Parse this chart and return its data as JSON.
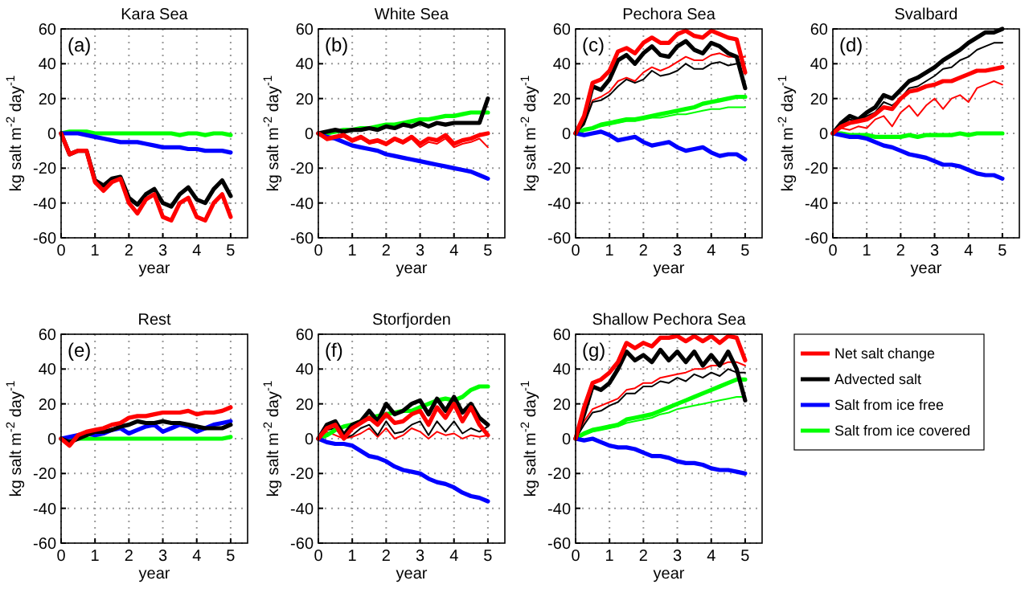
{
  "chart_data": [
    {
      "type": "line",
      "title": "Kara Sea",
      "annotations": [
        "(a)"
      ],
      "xlabel": "year",
      "ylabel": "kg salt m$^{-2}$ day$^{-1}$",
      "x": [
        0,
        0.25,
        0.5,
        0.75,
        1,
        1.25,
        1.5,
        1.75,
        2,
        2.25,
        2.5,
        2.75,
        3,
        3.25,
        3.5,
        3.75,
        4,
        4.25,
        4.5,
        4.75,
        5
      ],
      "xlim": [
        0,
        5.5
      ],
      "xticks": [
        0,
        1,
        2,
        3,
        4,
        5
      ],
      "ylim": [
        -60,
        60
      ],
      "yticks": [
        -60,
        -40,
        -20,
        0,
        20,
        40,
        60
      ],
      "grid": true,
      "series": [
        {
          "color": "#ff0000",
          "values": [
            0,
            -12,
            -10,
            -10,
            -28,
            -33,
            -28,
            -26,
            -40,
            -46,
            -38,
            -35,
            -48,
            -50,
            -40,
            -37,
            -48,
            -50,
            -40,
            -35,
            -48
          ]
        },
        {
          "color": "#000000",
          "values": [
            0,
            -12,
            -10,
            -10,
            -27,
            -30,
            -26,
            -25,
            -37,
            -41,
            -35,
            -32,
            -40,
            -42,
            -35,
            -31,
            -38,
            -40,
            -32,
            -27,
            -36
          ]
        },
        {
          "color": "#0000ff",
          "values": [
            0,
            0,
            0,
            -1,
            -2,
            -3,
            -4,
            -5,
            -5,
            -5,
            -6,
            -7,
            -8,
            -8,
            -8,
            -9,
            -9,
            -10,
            -10,
            -10,
            -11
          ]
        },
        {
          "color": "#00ff00",
          "values": [
            0,
            1,
            1,
            1,
            0,
            0,
            0,
            0,
            0,
            0,
            0,
            0,
            0,
            0,
            -1,
            0,
            0,
            -1,
            0,
            0,
            -1
          ]
        }
      ]
    },
    {
      "type": "line",
      "title": "White Sea",
      "annotations": [
        "(b)"
      ],
      "xlabel": "year",
      "ylabel": "kg salt m$^{-2}$ day$^{-1}$",
      "x": [
        0,
        0.25,
        0.5,
        0.75,
        1,
        1.25,
        1.5,
        1.75,
        2,
        2.25,
        2.5,
        2.75,
        3,
        3.25,
        3.5,
        3.75,
        4,
        4.25,
        4.5,
        4.75,
        5
      ],
      "xlim": [
        0,
        5.5
      ],
      "xticks": [
        0,
        1,
        2,
        3,
        4,
        5
      ],
      "ylim": [
        -60,
        60
      ],
      "yticks": [
        -60,
        -40,
        -20,
        0,
        20,
        40,
        60
      ],
      "grid": true,
      "series": [
        {
          "color": "#ff0000",
          "values": [
            0,
            -3,
            -2,
            -1,
            -4,
            -2,
            -5,
            -4,
            -6,
            -3,
            -5,
            -2,
            -6,
            -3,
            -4,
            -1,
            -6,
            -4,
            -3,
            -1,
            0
          ]
        },
        {
          "color": "#000000",
          "values": [
            0,
            1,
            2,
            1,
            2,
            2,
            3,
            2,
            4,
            3,
            5,
            4,
            6,
            4,
            6,
            5,
            6,
            6,
            6,
            6,
            20
          ]
        },
        {
          "color": "#0000ff",
          "values": [
            0,
            -2,
            -3,
            -5,
            -7,
            -8,
            -9,
            -10,
            -12,
            -13,
            -14,
            -15,
            -16,
            -17,
            -18,
            -19,
            -20,
            -21,
            -22,
            -24,
            -26
          ]
        },
        {
          "color": "#00ff00",
          "values": [
            0,
            0,
            1,
            2,
            2,
            3,
            3,
            4,
            5,
            5,
            6,
            7,
            8,
            8,
            9,
            10,
            10,
            11,
            12,
            12,
            12
          ]
        },
        {
          "color": "#ff0000",
          "values": [
            0,
            -4,
            -3,
            -2,
            -5,
            -3,
            -6,
            -5,
            -7,
            -4,
            -6,
            -3,
            -8,
            -5,
            -6,
            -3,
            -8,
            -6,
            -5,
            -3,
            -8
          ]
        }
      ]
    },
    {
      "type": "line",
      "title": "Pechora Sea",
      "annotations": [
        "(c)"
      ],
      "xlabel": "year",
      "ylabel": "kg salt m$^{-2}$ day$^{-1}$",
      "x": [
        0,
        0.25,
        0.5,
        0.75,
        1,
        1.25,
        1.5,
        1.75,
        2,
        2.25,
        2.5,
        2.75,
        3,
        3.25,
        3.5,
        3.75,
        4,
        4.25,
        4.5,
        4.75,
        5
      ],
      "xlim": [
        0,
        5.5
      ],
      "xticks": [
        0,
        1,
        2,
        3,
        4,
        5
      ],
      "ylim": [
        -60,
        60
      ],
      "yticks": [
        -60,
        -40,
        -20,
        0,
        20,
        40,
        60
      ],
      "grid": true,
      "series": [
        {
          "color": "#ff0000",
          "values": [
            0,
            10,
            29,
            31,
            36,
            47,
            49,
            46,
            52,
            55,
            52,
            52,
            57,
            59,
            56,
            55,
            59,
            57,
            55,
            54,
            35
          ]
        },
        {
          "color": "#000000",
          "values": [
            0,
            8,
            27,
            25,
            31,
            42,
            45,
            40,
            46,
            50,
            45,
            44,
            50,
            53,
            48,
            46,
            52,
            50,
            46,
            44,
            26
          ]
        },
        {
          "color": "#0000ff",
          "values": [
            0,
            -1,
            0,
            1,
            -1,
            -4,
            -3,
            -2,
            -5,
            -7,
            -6,
            -5,
            -8,
            -10,
            -9,
            -8,
            -11,
            -13,
            -12,
            -12,
            -15
          ]
        },
        {
          "color": "#00ff00",
          "values": [
            0,
            2,
            3,
            5,
            6,
            7,
            8,
            8,
            9,
            10,
            11,
            12,
            13,
            14,
            15,
            17,
            18,
            19,
            20,
            21,
            21
          ]
        },
        {
          "color": "#ff0000",
          "values": [
            0,
            6,
            19,
            21,
            24,
            30,
            32,
            30,
            35,
            38,
            36,
            38,
            41,
            44,
            42,
            42,
            45,
            46,
            44,
            44,
            44
          ]
        },
        {
          "color": "#000000",
          "values": [
            0,
            5,
            18,
            19,
            22,
            27,
            31,
            29,
            31,
            36,
            33,
            34,
            36,
            40,
            37,
            37,
            40,
            41,
            39,
            40,
            40
          ]
        },
        {
          "color": "#00ff00",
          "values": [
            0,
            2,
            3,
            4,
            5,
            6,
            7,
            7,
            8,
            9,
            9,
            10,
            11,
            11,
            12,
            13,
            14,
            14,
            15,
            15,
            15
          ]
        }
      ]
    },
    {
      "type": "line",
      "title": "Svalbard",
      "annotations": [
        "(d)"
      ],
      "xlabel": "year",
      "ylabel": "kg salt m$^{-2}$ day$^{-1}$",
      "x": [
        0,
        0.25,
        0.5,
        0.75,
        1,
        1.25,
        1.5,
        1.75,
        2,
        2.25,
        2.5,
        2.75,
        3,
        3.25,
        3.5,
        3.75,
        4,
        4.25,
        4.5,
        4.75,
        5
      ],
      "xlim": [
        0,
        5.5
      ],
      "xticks": [
        0,
        1,
        2,
        3,
        4,
        5
      ],
      "ylim": [
        -60,
        60
      ],
      "yticks": [
        -60,
        -40,
        -20,
        0,
        20,
        40,
        60
      ],
      "grid": true,
      "series": [
        {
          "color": "#ff0000",
          "values": [
            0,
            4,
            6,
            7,
            8,
            11,
            15,
            14,
            20,
            24,
            25,
            27,
            28,
            30,
            30,
            32,
            34,
            36,
            36,
            37,
            38
          ]
        },
        {
          "color": "#000000",
          "values": [
            0,
            6,
            10,
            8,
            12,
            15,
            22,
            20,
            25,
            30,
            32,
            35,
            38,
            42,
            45,
            48,
            52,
            55,
            58,
            58,
            60
          ]
        },
        {
          "color": "#0000ff",
          "values": [
            0,
            -1,
            -2,
            -2,
            -3,
            -5,
            -7,
            -8,
            -10,
            -12,
            -13,
            -14,
            -16,
            -18,
            -18,
            -19,
            -21,
            -23,
            -24,
            -24,
            -26
          ]
        },
        {
          "color": "#00ff00",
          "values": [
            0,
            0,
            -1,
            -1,
            -1,
            -2,
            -2,
            -2,
            -2,
            -1,
            -2,
            -1,
            -1,
            -1,
            -1,
            0,
            -1,
            0,
            0,
            0,
            0
          ]
        },
        {
          "color": "#ff0000",
          "values": [
            0,
            3,
            2,
            4,
            3,
            8,
            10,
            4,
            12,
            16,
            10,
            16,
            20,
            14,
            20,
            22,
            18,
            26,
            28,
            30,
            28
          ]
        },
        {
          "color": "#000000",
          "values": [
            0,
            5,
            8,
            7,
            10,
            12,
            18,
            16,
            20,
            26,
            27,
            30,
            33,
            37,
            38,
            42,
            44,
            48,
            50,
            52,
            52
          ]
        }
      ]
    },
    {
      "type": "line",
      "title": "Rest",
      "annotations": [
        "(e)"
      ],
      "xlabel": "year",
      "ylabel": "kg salt m$^{-2}$ day$^{-1}$",
      "x": [
        0,
        0.25,
        0.5,
        0.75,
        1,
        1.25,
        1.5,
        1.75,
        2,
        2.25,
        2.5,
        2.75,
        3,
        3.25,
        3.5,
        3.75,
        4,
        4.25,
        4.5,
        4.75,
        5
      ],
      "xlim": [
        0,
        5.5
      ],
      "xticks": [
        0,
        1,
        2,
        3,
        4,
        5
      ],
      "ylim": [
        -60,
        60
      ],
      "yticks": [
        -60,
        -40,
        -20,
        0,
        20,
        40,
        60
      ],
      "grid": true,
      "series": [
        {
          "color": "#ff0000",
          "values": [
            0,
            -4,
            2,
            4,
            5,
            6,
            8,
            9,
            12,
            13,
            13,
            14,
            15,
            15,
            15,
            16,
            14,
            15,
            15,
            16,
            18
          ]
        },
        {
          "color": "#000000",
          "values": [
            0,
            -2,
            0,
            2,
            4,
            4,
            5,
            7,
            8,
            10,
            9,
            9,
            10,
            9,
            9,
            8,
            7,
            6,
            6,
            6,
            8
          ]
        },
        {
          "color": "#0000ff",
          "values": [
            0,
            1,
            2,
            3,
            2,
            3,
            5,
            6,
            3,
            5,
            7,
            8,
            4,
            6,
            8,
            7,
            4,
            6,
            8,
            9,
            10
          ]
        },
        {
          "color": "#00ff00",
          "values": [
            0,
            0,
            0,
            0,
            0,
            0,
            0,
            0,
            0,
            0,
            0,
            0,
            0,
            0,
            0,
            0,
            0,
            0,
            0,
            0,
            1
          ]
        }
      ]
    },
    {
      "type": "line",
      "title": "Storfjorden",
      "annotations": [
        "(f)"
      ],
      "xlabel": "year",
      "ylabel": "kg salt m$^{-2}$ day$^{-1}$",
      "x": [
        0,
        0.25,
        0.5,
        0.75,
        1,
        1.25,
        1.5,
        1.75,
        2,
        2.25,
        2.5,
        2.75,
        3,
        3.25,
        3.5,
        3.75,
        4,
        4.25,
        4.5,
        4.75,
        5
      ],
      "xlim": [
        0,
        5.5
      ],
      "xticks": [
        0,
        1,
        2,
        3,
        4,
        5
      ],
      "ylim": [
        -60,
        60
      ],
      "yticks": [
        -60,
        -40,
        -20,
        0,
        20,
        40,
        60
      ],
      "grid": true,
      "series": [
        {
          "color": "#ff0000",
          "values": [
            0,
            6,
            8,
            0,
            6,
            9,
            12,
            8,
            14,
            9,
            10,
            14,
            16,
            8,
            18,
            12,
            20,
            10,
            18,
            8,
            2
          ]
        },
        {
          "color": "#000000",
          "values": [
            0,
            8,
            10,
            2,
            8,
            10,
            16,
            10,
            20,
            14,
            16,
            20,
            22,
            14,
            23,
            16,
            24,
            15,
            20,
            12,
            8
          ]
        },
        {
          "color": "#0000ff",
          "values": [
            0,
            -2,
            -3,
            -3,
            -4,
            -7,
            -10,
            -11,
            -13,
            -16,
            -18,
            -19,
            -20,
            -23,
            -25,
            -26,
            -28,
            -31,
            -33,
            -34,
            -36
          ]
        },
        {
          "color": "#00ff00",
          "values": [
            0,
            2,
            5,
            7,
            8,
            10,
            12,
            13,
            14,
            15,
            16,
            16,
            18,
            20,
            22,
            23,
            22,
            24,
            28,
            30,
            30
          ]
        },
        {
          "color": "#ff0000",
          "values": [
            0,
            4,
            2,
            0,
            1,
            3,
            6,
            1,
            6,
            0,
            2,
            6,
            4,
            0,
            4,
            2,
            3,
            0,
            2,
            1,
            2
          ]
        },
        {
          "color": "#000000",
          "values": [
            0,
            5,
            6,
            0,
            2,
            6,
            8,
            2,
            10,
            3,
            4,
            8,
            10,
            2,
            10,
            4,
            10,
            3,
            6,
            4,
            7
          ]
        }
      ]
    },
    {
      "type": "line",
      "title": "Shallow Pechora Sea",
      "annotations": [
        "(g)"
      ],
      "xlabel": "year",
      "ylabel": "kg salt m$^{-2}$ day$^{-1}$",
      "x": [
        0,
        0.25,
        0.5,
        0.75,
        1,
        1.25,
        1.5,
        1.75,
        2,
        2.25,
        2.5,
        2.75,
        3,
        3.25,
        3.5,
        3.75,
        4,
        4.25,
        4.5,
        4.75,
        5
      ],
      "xlim": [
        0,
        5.5
      ],
      "xticks": [
        0,
        1,
        2,
        3,
        4,
        5
      ],
      "ylim": [
        -60,
        60
      ],
      "yticks": [
        -60,
        -40,
        -20,
        0,
        20,
        40,
        60
      ],
      "grid": true,
      "legend": "right",
      "series": [
        {
          "name": "Net salt change",
          "color": "#ff0000",
          "values": [
            0,
            18,
            32,
            34,
            38,
            44,
            55,
            52,
            55,
            53,
            58,
            58,
            59,
            56,
            59,
            56,
            59,
            55,
            59,
            58,
            45
          ]
        },
        {
          "name": "Advected salt",
          "color": "#000000",
          "values": [
            0,
            14,
            30,
            28,
            32,
            40,
            50,
            45,
            48,
            44,
            51,
            45,
            50,
            44,
            50,
            42,
            48,
            42,
            50,
            40,
            22
          ]
        },
        {
          "name": "Salt from ice free",
          "color": "#0000ff",
          "values": [
            0,
            -1,
            0,
            -2,
            -4,
            -5,
            -5,
            -6,
            -8,
            -10,
            -10,
            -11,
            -13,
            -14,
            -14,
            -15,
            -17,
            -18,
            -18,
            -19,
            -20
          ]
        },
        {
          "name": "Salt from ice covered",
          "color": "#00ff00",
          "values": [
            0,
            3,
            5,
            6,
            7,
            8,
            11,
            12,
            13,
            14,
            16,
            18,
            20,
            22,
            24,
            26,
            28,
            30,
            32,
            34,
            34
          ]
        },
        {
          "color": "#ff0000",
          "values": [
            0,
            10,
            17,
            19,
            21,
            23,
            28,
            29,
            32,
            32,
            35,
            36,
            37,
            38,
            40,
            40,
            42,
            42,
            44,
            44,
            42
          ]
        },
        {
          "color": "#000000",
          "values": [
            0,
            8,
            15,
            16,
            19,
            21,
            26,
            26,
            30,
            30,
            33,
            32,
            35,
            33,
            37,
            35,
            38,
            36,
            40,
            38,
            38
          ]
        },
        {
          "color": "#00ff00",
          "values": [
            0,
            2,
            4,
            5,
            6,
            7,
            9,
            10,
            11,
            12,
            14,
            15,
            17,
            18,
            19,
            20,
            21,
            22,
            23,
            24,
            24
          ]
        }
      ]
    }
  ]
}
